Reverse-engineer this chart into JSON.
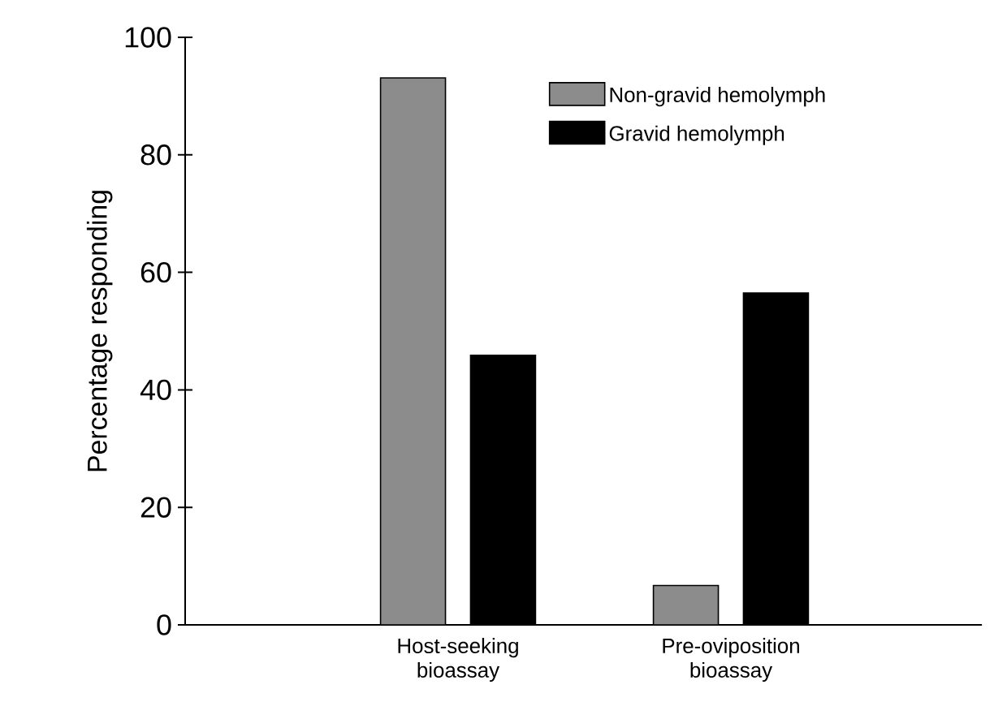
{
  "chart_data": {
    "type": "bar",
    "ylabel": "Percentage responding",
    "categories": [
      "Host-seeking bioassay",
      "Pre-oviposition bioassay"
    ],
    "series": [
      {
        "name": "Non-gravid hemolymph",
        "color": "#8c8c8c",
        "values": [
          93.1,
          6.7
        ]
      },
      {
        "name": "Gravid hemolymph",
        "color": "#000000",
        "values": [
          45.9,
          56.5
        ]
      }
    ],
    "ylim": [
      0,
      100
    ],
    "yticks": [
      0,
      20,
      40,
      60,
      80,
      100
    ],
    "legend": "top right"
  }
}
